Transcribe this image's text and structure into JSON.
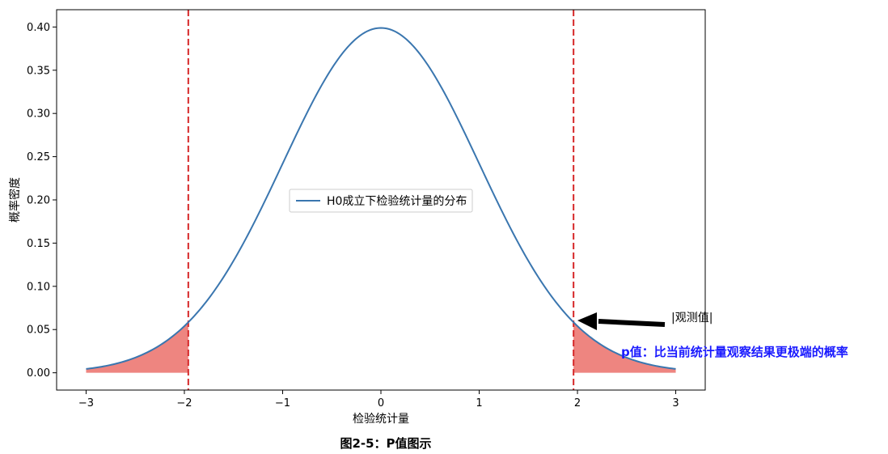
{
  "chart_data": {
    "type": "line",
    "title": "",
    "xlabel": "检验统计量",
    "ylabel": "概率密度",
    "xlim": [
      -3.3,
      3.3
    ],
    "ylim": [
      -0.02,
      0.42
    ],
    "x_ticks": [
      -3,
      -2,
      -1,
      0,
      1,
      2,
      3
    ],
    "x_tick_labels": [
      "−3",
      "−2",
      "−1",
      "0",
      "1",
      "2",
      "3"
    ],
    "y_ticks": [
      0.0,
      0.05,
      0.1,
      0.15,
      0.2,
      0.25,
      0.3,
      0.35,
      0.4
    ],
    "y_tick_labels": [
      "0.00",
      "0.05",
      "0.10",
      "0.15",
      "0.20",
      "0.25",
      "0.30",
      "0.35",
      "0.40"
    ],
    "series": [
      {
        "name": "H0成立下检验统计量的分布",
        "distribution": "standard normal pdf",
        "x_range": [
          -3,
          3
        ],
        "color": "#3a76af"
      }
    ],
    "critical_lines": {
      "x": [
        -1.96,
        1.96
      ],
      "color": "#d62728",
      "style": "dashed"
    },
    "shaded_tails": {
      "left": [
        -3,
        -1.96
      ],
      "right": [
        1.96,
        3
      ],
      "color": "#ee8580"
    },
    "grid": false,
    "legend_placement": "center"
  },
  "annotations": {
    "observed_label": "|观测值|",
    "observed_x": 1.96,
    "p_value_text": "p值：比当前统计量观察结果更极端的概率"
  },
  "caption": "图2-5：P值图示"
}
